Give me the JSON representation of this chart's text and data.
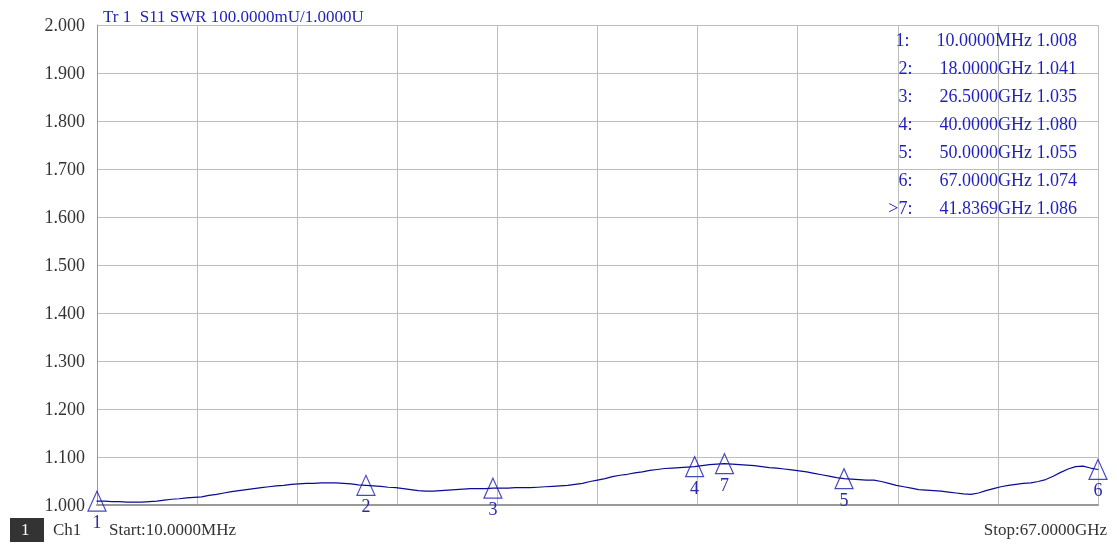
{
  "chart_data": {
    "type": "line",
    "title": "Tr 1  S11 SWR 100.0000mU/1.0000U",
    "categories": [
      null,
      null,
      null,
      null,
      null,
      null,
      null,
      null,
      null,
      null,
      null,
      null,
      null,
      null,
      null,
      null,
      null,
      null,
      null,
      null,
      null,
      null,
      null,
      null,
      null,
      null,
      null,
      null,
      null,
      null,
      null,
      null,
      null,
      null,
      null,
      null,
      null,
      null,
      null,
      null,
      null,
      null,
      null,
      null,
      null,
      null,
      null,
      null,
      null,
      null,
      null,
      null,
      null,
      null,
      null,
      null,
      null,
      null,
      null,
      null,
      null,
      null,
      null,
      null,
      null,
      null,
      null,
      null,
      null,
      null,
      null,
      null,
      null,
      null,
      null,
      null,
      null,
      null,
      null,
      null,
      null,
      null,
      null,
      null,
      null,
      null,
      null,
      null,
      null,
      null,
      null,
      null,
      null,
      null,
      null,
      null,
      null,
      null,
      null,
      null,
      null,
      null,
      null,
      null,
      null,
      null,
      null,
      null,
      null,
      null,
      null,
      null,
      null,
      null,
      null,
      null,
      null,
      null,
      null,
      null,
      null,
      null,
      null,
      null,
      null,
      null,
      null,
      null,
      null,
      null,
      null,
      null,
      null,
      null,
      null
    ],
    "ylim": [
      1,
      2
    ],
    "yticks": [
      {
        "value": 1,
        "label": "1.000"
      },
      {
        "value": 1.1,
        "label": "1.100"
      },
      {
        "value": 1.2,
        "label": "1.200"
      },
      {
        "value": 1.3,
        "label": "1.300"
      },
      {
        "value": 1.4,
        "label": "1.400"
      },
      {
        "value": 1.5,
        "label": "1.500"
      },
      {
        "value": 1.6,
        "label": "1.600"
      },
      {
        "value": 1.7,
        "label": "1.700"
      },
      {
        "value": 1.8,
        "label": "1.800"
      },
      {
        "value": 1.9,
        "label": "1.900"
      },
      {
        "value": 2,
        "label": "2.000"
      }
    ],
    "tick_labels": "y",
    "grid": true,
    "series": [
      {
        "color": "#0a0a96",
        "marker": "none",
        "line_style": "solid",
        "values": [
          1.008,
          1.008,
          1.007,
          1.007,
          1.006,
          1.006,
          1.006,
          1.007,
          1.008,
          1.01,
          1.012,
          1.013,
          1.015,
          1.016,
          1.017,
          1.02,
          1.022,
          1.025,
          1.028,
          1.03,
          1.032,
          1.034,
          1.036,
          1.038,
          1.04,
          1.041,
          1.043,
          1.044,
          1.045,
          1.045,
          1.046,
          1.046,
          1.046,
          1.045,
          1.044,
          1.042,
          1.041,
          1.04,
          1.039,
          1.037,
          1.036,
          1.034,
          1.032,
          1.03,
          1.029,
          1.029,
          1.03,
          1.031,
          1.032,
          1.033,
          1.034,
          1.034,
          1.034,
          1.035,
          1.035,
          1.035,
          1.036,
          1.036,
          1.036,
          1.037,
          1.038,
          1.039,
          1.04,
          1.041,
          1.043,
          1.045,
          1.049,
          1.052,
          1.055,
          1.059,
          1.062,
          1.064,
          1.067,
          1.069,
          1.072,
          1.074,
          1.076,
          1.077,
          1.078,
          1.079,
          1.08,
          1.082,
          1.084,
          1.085,
          1.086,
          1.085,
          1.084,
          1.083,
          1.082,
          1.08,
          1.078,
          1.077,
          1.075,
          1.073,
          1.071,
          1.069,
          1.066,
          1.063,
          1.06,
          1.057,
          1.055,
          1.054,
          1.053,
          1.052,
          1.052,
          1.049,
          1.045,
          1.041,
          1.038,
          1.035,
          1.032,
          1.031,
          1.03,
          1.029,
          1.027,
          1.025,
          1.023,
          1.022,
          1.025,
          1.03,
          1.034,
          1.038,
          1.041,
          1.043,
          1.045,
          1.046,
          1.049,
          1.053,
          1.06,
          1.068,
          1.075,
          1.08,
          1.081,
          1.077,
          1.074
        ]
      },
      {
        "type": "scatter",
        "color": "#1a1ab4",
        "marker": "triangle",
        "values": [
          1.008,
          null,
          null,
          null,
          null,
          null,
          null,
          null,
          null,
          null,
          null,
          null,
          null,
          null,
          null,
          null,
          null,
          null,
          null,
          null,
          null,
          null,
          null,
          null,
          null,
          null,
          null,
          null,
          null,
          null,
          null,
          null,
          null,
          null,
          null,
          null,
          1.041,
          null,
          null,
          null,
          null,
          null,
          null,
          null,
          null,
          null,
          null,
          null,
          null,
          null,
          null,
          null,
          null,
          1.035,
          null,
          null,
          null,
          null,
          null,
          null,
          null,
          null,
          null,
          null,
          null,
          null,
          null,
          null,
          null,
          null,
          null,
          null,
          null,
          null,
          null,
          null,
          null,
          null,
          null,
          null,
          1.08,
          null,
          null,
          null,
          1.086,
          null,
          null,
          null,
          null,
          null,
          null,
          null,
          null,
          null,
          null,
          null,
          null,
          null,
          null,
          null,
          1.055,
          null,
          null,
          null,
          null,
          null,
          null,
          null,
          null,
          null,
          null,
          null,
          null,
          null,
          null,
          null,
          null,
          null,
          null,
          null,
          null,
          null,
          null,
          null,
          null,
          null,
          null,
          null,
          null,
          null,
          null,
          null,
          null,
          null,
          1.074
        ]
      }
    ],
    "annotations": [
      "1:      10.0000MHz 1.008",
      "2:      18.0000GHz 1.041",
      "3:      26.5000GHz 1.035",
      "4:      40.0000GHz 1.080",
      "5:      50.0000GHz 1.055",
      "6:      67.0000GHz 1.074",
      ">7:      41.8369GHz 1.086",
      "1",
      "Ch1",
      "Start:10.0000MHz",
      "Stop:67.0000GHz",
      "1",
      "2",
      "3",
      "4",
      "7",
      "5",
      "6"
    ]
  }
}
